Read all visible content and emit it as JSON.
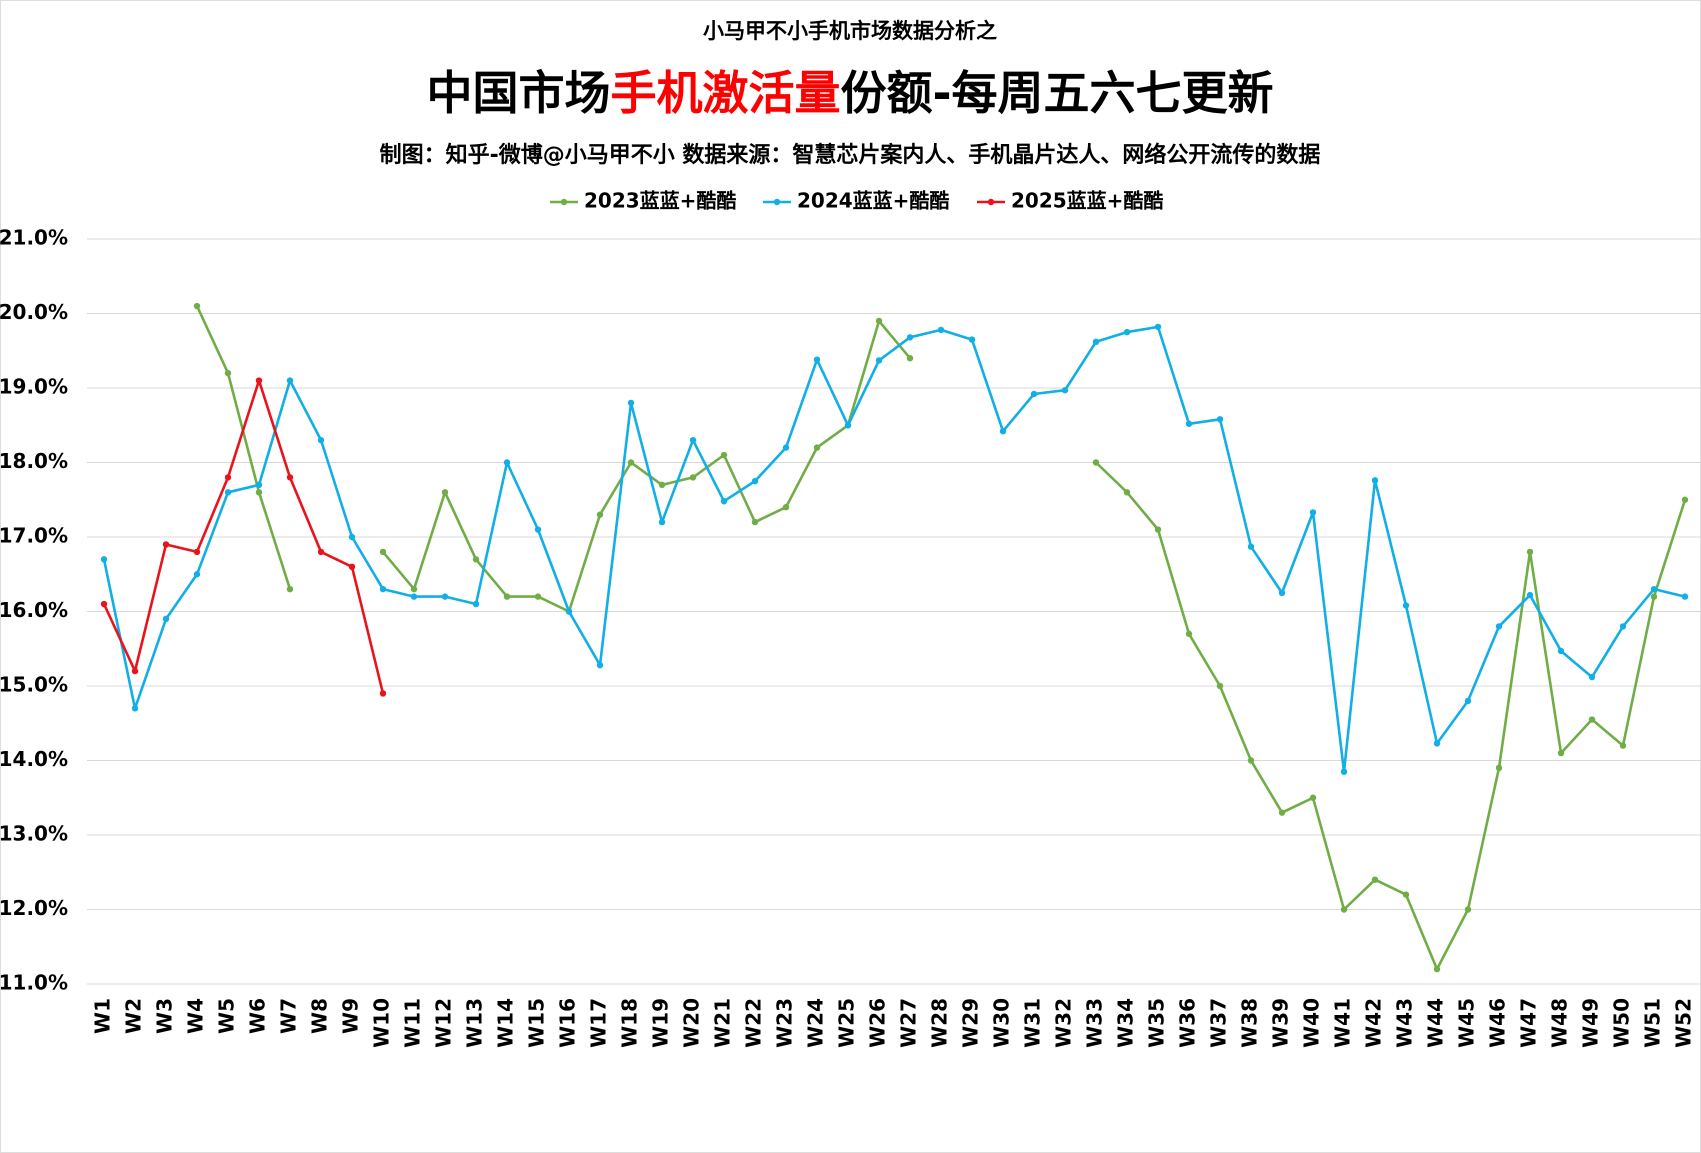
{
  "chart_data": {
    "type": "line",
    "supertitle": "小马甲不小手机市场数据分析之",
    "title": [
      "中国市场",
      "手机激活量",
      "份额-每周五六七更新"
    ],
    "title_colors": [
      "#000000",
      "#ff0000",
      "#000000"
    ],
    "subtitle": "制图：知乎-微博@小马甲不小  数据来源：智慧芯片案内人、手机晶片达人、网络公开流传的数据",
    "categories": [
      "W1",
      "W2",
      "W3",
      "W4",
      "W5",
      "W6",
      "W7",
      "W8",
      "W9",
      "W10",
      "W11",
      "W12",
      "W13",
      "W14",
      "W15",
      "W16",
      "W17",
      "W18",
      "W19",
      "W20",
      "W21",
      "W22",
      "W23",
      "W24",
      "W25",
      "W26",
      "W27",
      "W28",
      "W29",
      "W30",
      "W31",
      "W32",
      "W33",
      "W34",
      "W35",
      "W36",
      "W37",
      "W38",
      "W39",
      "W40",
      "W41",
      "W42",
      "W43",
      "W44",
      "W45",
      "W46",
      "W47",
      "W48",
      "W49",
      "W50",
      "W51",
      "W52"
    ],
    "series": [
      {
        "name": "2023蓝蓝+酷酷",
        "color": "#70ad47",
        "values": [
          null,
          null,
          null,
          20.1,
          19.2,
          17.6,
          16.3,
          null,
          null,
          16.8,
          16.3,
          17.6,
          16.7,
          16.2,
          16.2,
          16.0,
          17.3,
          18.0,
          17.7,
          17.8,
          18.1,
          17.2,
          17.4,
          18.2,
          18.5,
          19.9,
          19.4,
          null,
          null,
          null,
          null,
          null,
          18.0,
          17.6,
          17.1,
          15.7,
          15.0,
          14.0,
          13.3,
          13.5,
          12.0,
          12.4,
          12.2,
          11.2,
          12.0,
          13.9,
          16.8,
          14.1,
          14.55,
          14.2,
          16.2,
          17.5
        ]
      },
      {
        "name": "2024蓝蓝+酷酷",
        "color": "#12aee6",
        "values": [
          16.7,
          14.7,
          15.9,
          16.5,
          17.6,
          17.7,
          19.1,
          18.3,
          17.0,
          16.3,
          16.2,
          16.2,
          16.1,
          18.0,
          17.1,
          16.0,
          15.28,
          18.8,
          17.2,
          18.3,
          17.48,
          17.75,
          18.2,
          19.38,
          18.5,
          19.37,
          19.68,
          19.78,
          19.65,
          18.42,
          18.92,
          18.97,
          19.62,
          19.75,
          19.82,
          18.52,
          18.58,
          16.87,
          16.25,
          17.33,
          13.85,
          17.76,
          16.08,
          14.23,
          14.8,
          15.8,
          16.22,
          15.47,
          15.12,
          15.8,
          16.3,
          16.2
        ]
      },
      {
        "name": "2025蓝蓝+酷酷",
        "color": "#e8141c",
        "values": [
          16.1,
          15.2,
          16.9,
          16.8,
          17.8,
          19.1,
          17.8,
          16.8,
          16.6,
          14.9,
          null,
          null,
          null,
          null,
          null,
          null,
          null,
          null,
          null,
          null,
          null,
          null,
          null,
          null,
          null,
          null,
          null,
          null,
          null,
          null,
          null,
          null,
          null,
          null,
          null,
          null,
          null,
          null,
          null,
          null,
          null,
          null,
          null,
          null,
          null,
          null,
          null,
          null,
          null,
          null,
          null,
          null
        ]
      }
    ],
    "ylim": [
      11,
      21
    ],
    "yticks": [
      {
        "value": 11,
        "label": "11.0%"
      },
      {
        "value": 12,
        "label": "12.0%"
      },
      {
        "value": 13,
        "label": "13.0%"
      },
      {
        "value": 14,
        "label": "14.0%"
      },
      {
        "value": 15,
        "label": "15.0%"
      },
      {
        "value": 16,
        "label": "16.0%"
      },
      {
        "value": 17,
        "label": "17.0%"
      },
      {
        "value": 18,
        "label": "18.0%"
      },
      {
        "value": 19,
        "label": "19.0%"
      },
      {
        "value": 20,
        "label": "20.0%"
      },
      {
        "value": 21,
        "label": "21.0%"
      }
    ],
    "grid": true,
    "legend": "top"
  }
}
